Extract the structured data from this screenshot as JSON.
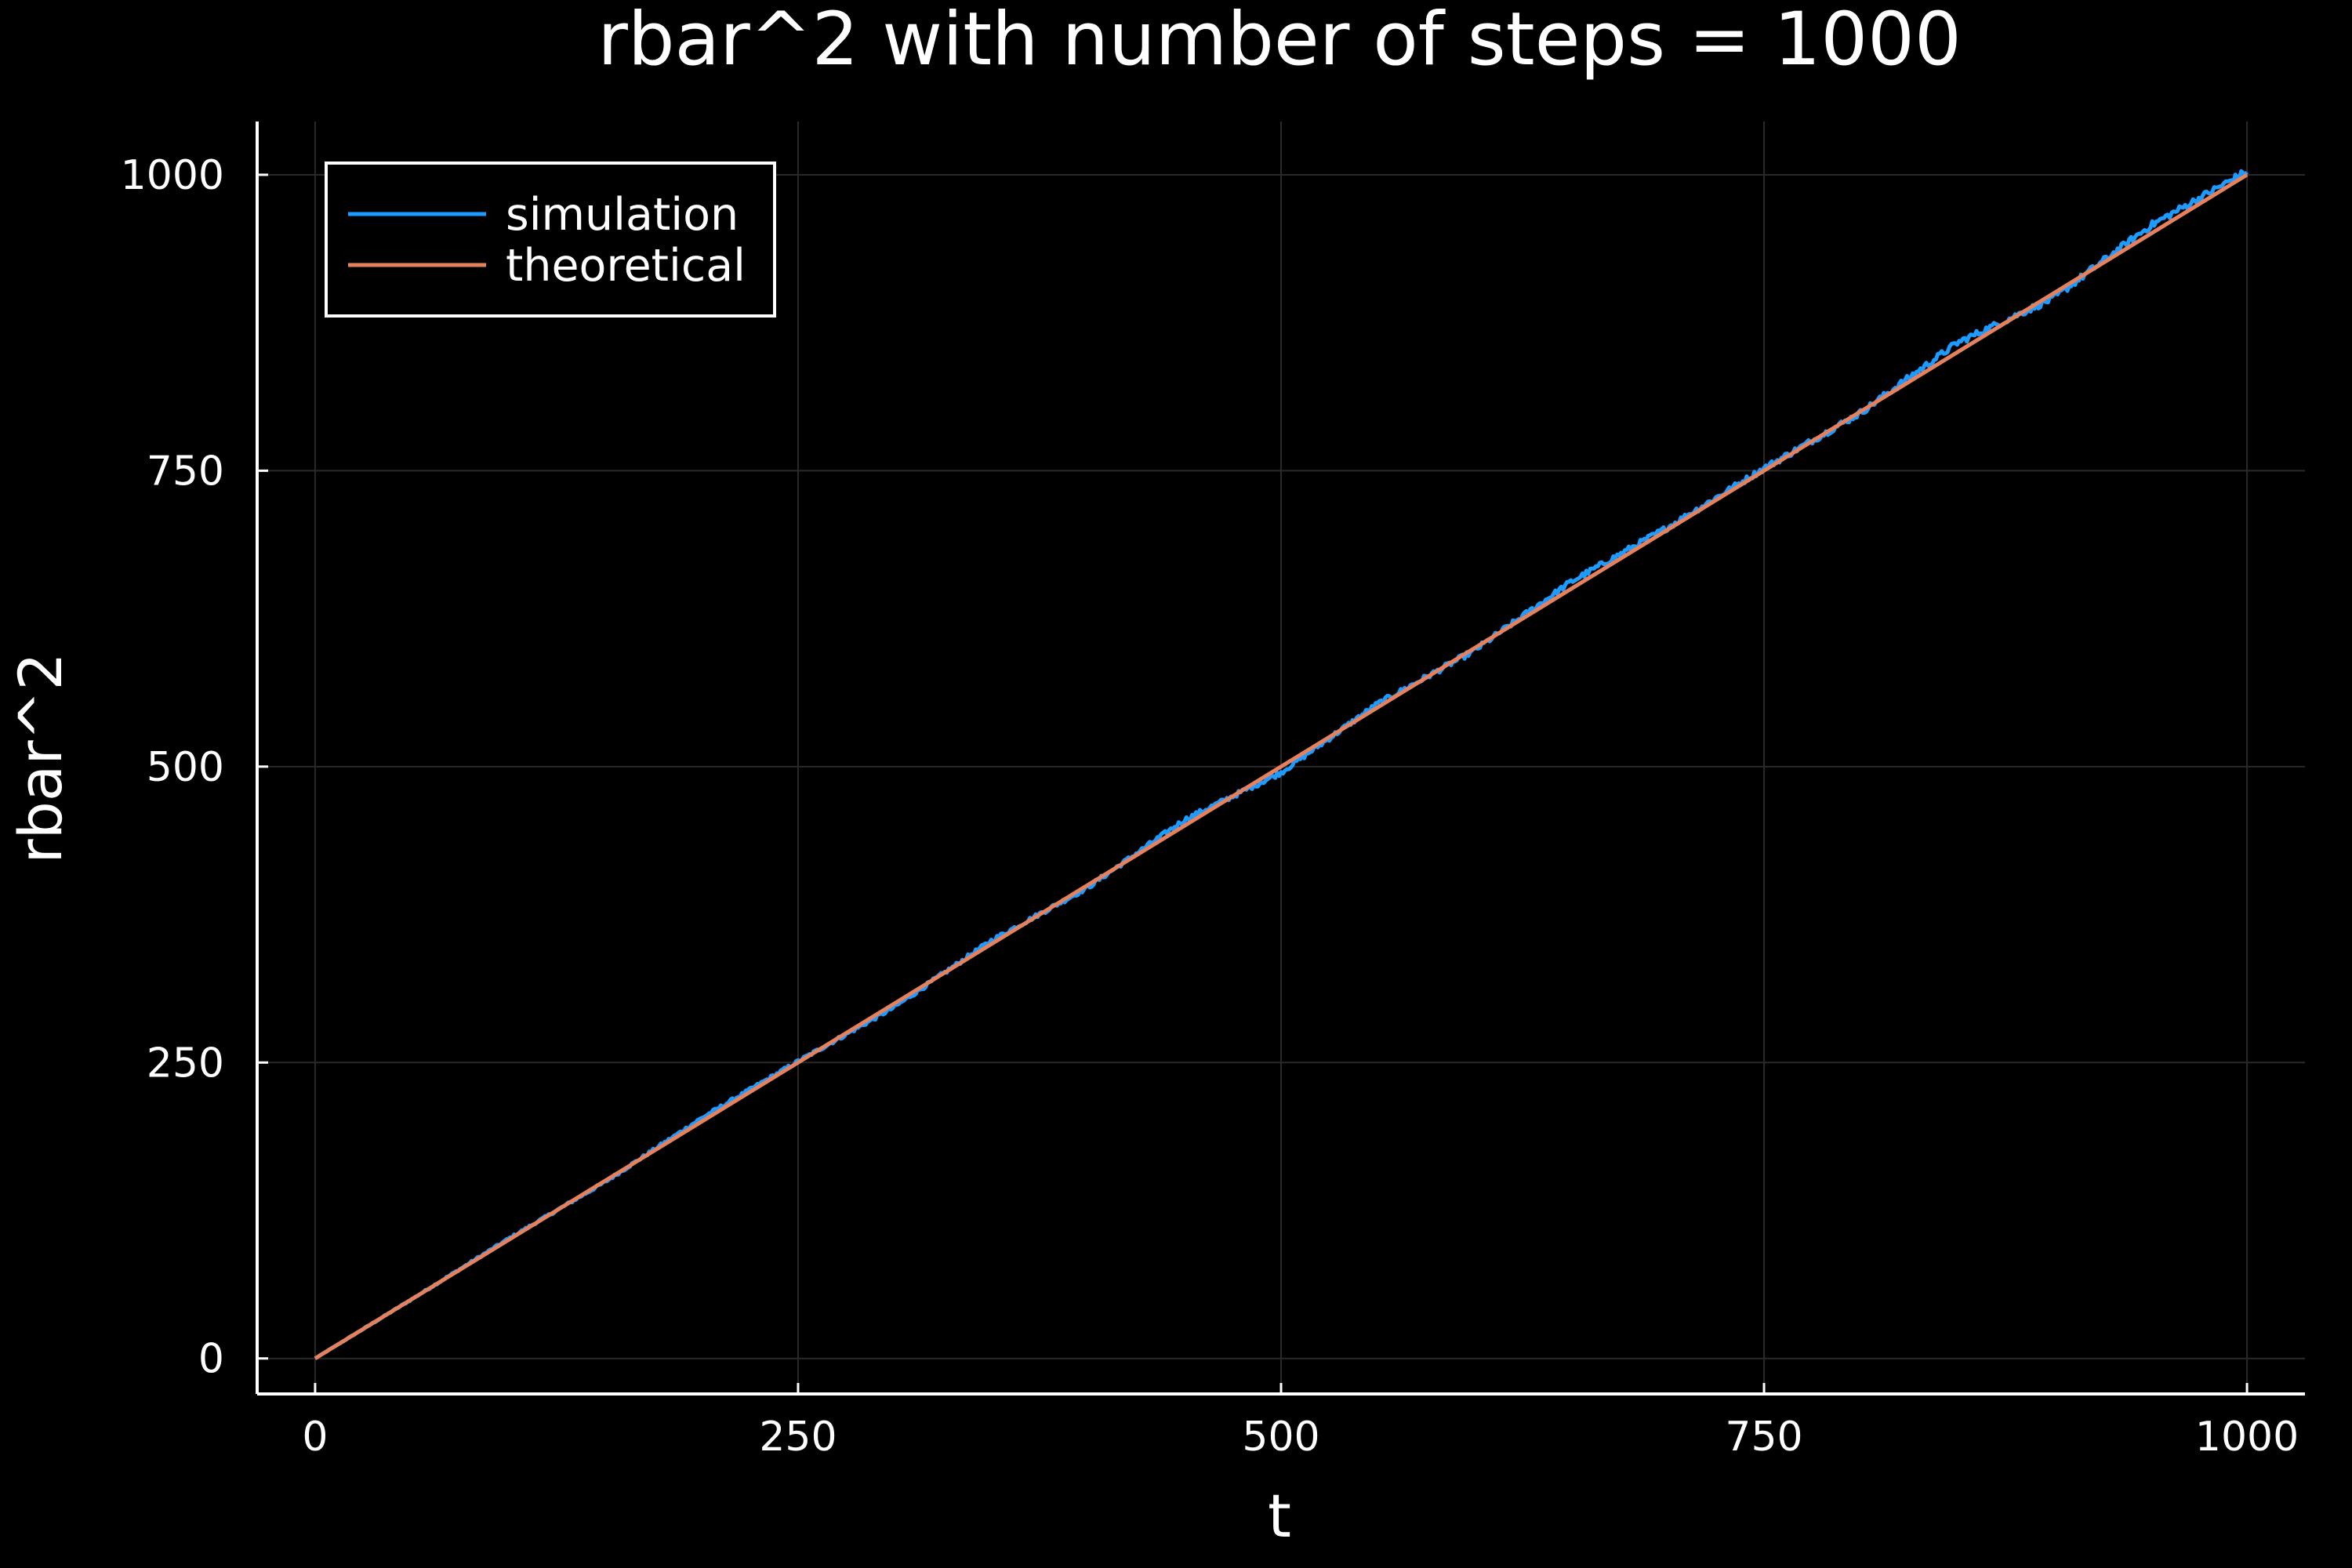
{
  "chart_data": {
    "type": "line",
    "title": "rbar^2 with number of steps = 1000",
    "xlabel": "t",
    "ylabel": "rbar^2",
    "xlim": [
      -30,
      1030
    ],
    "ylim": [
      -30,
      1045
    ],
    "xticks": [
      0,
      250,
      500,
      750,
      1000
    ],
    "yticks": [
      0,
      250,
      500,
      750,
      1000
    ],
    "grid": true,
    "legend_position": "top-left",
    "colors": {
      "background": "#000000",
      "axes": "#ffffff",
      "grid": "#2a2a2a",
      "simulation": "#1e9bff",
      "theoretical": "#e5815c"
    },
    "series": [
      {
        "name": "simulation",
        "color": "#1e9bff",
        "x": [
          0,
          50,
          100,
          150,
          200,
          250,
          300,
          350,
          400,
          450,
          500,
          550,
          600,
          650,
          700,
          750,
          800,
          850,
          900,
          950,
          1000
        ],
        "y": [
          0,
          50,
          101,
          149,
          203,
          251,
          297,
          353,
          398,
          455,
          495,
          553,
          598,
          656,
          702,
          752,
          799,
          858,
          896,
          957,
          1003
        ],
        "noise_scale": 0.02
      },
      {
        "name": "theoretical",
        "color": "#e5815c",
        "x": [
          0,
          1000
        ],
        "y": [
          0,
          1000
        ]
      }
    ]
  }
}
